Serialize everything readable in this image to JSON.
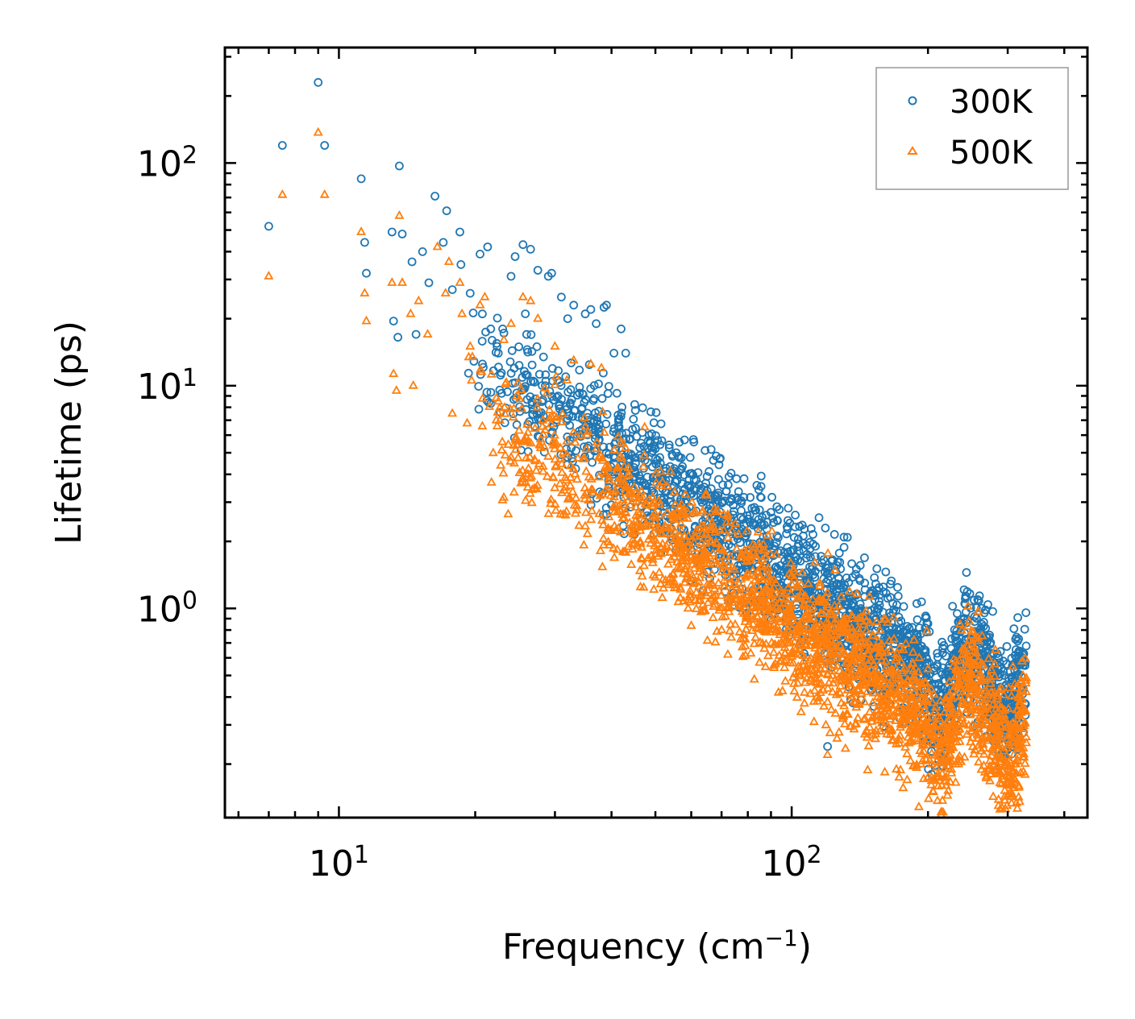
{
  "chart_data": {
    "type": "scatter",
    "xscale": "log",
    "yscale": "log",
    "xlim": [
      5.6,
      450
    ],
    "ylim": [
      0.115,
      330
    ],
    "xlabel": "Frequency (cm",
    "xlabel_sup": "−1",
    "xlabel_close": ")",
    "ylabel": "Lifetime (ps)",
    "x_ticks": [
      {
        "value": 10,
        "base": "10",
        "exp": "1"
      },
      {
        "value": 100,
        "base": "10",
        "exp": "2"
      }
    ],
    "y_ticks": [
      {
        "value": 1,
        "base": "10",
        "exp": "0"
      },
      {
        "value": 10,
        "base": "10",
        "exp": "1"
      },
      {
        "value": 100,
        "base": "10",
        "exp": "2"
      }
    ],
    "legend": {
      "position": "top-right",
      "entries": [
        "300K",
        "500K"
      ]
    },
    "series": [
      {
        "name": "300K",
        "marker": "circle",
        "color": "#1f77b4",
        "points": [
          [
            7.0,
            52
          ],
          [
            7.5,
            120
          ],
          [
            9.0,
            230
          ],
          [
            9.3,
            120
          ],
          [
            11.2,
            85
          ],
          [
            11.4,
            44
          ],
          [
            11.5,
            32
          ],
          [
            13.1,
            49
          ],
          [
            13.6,
            97
          ],
          [
            13.8,
            48
          ],
          [
            13.2,
            19.5
          ],
          [
            13.5,
            16.5
          ],
          [
            14.5,
            36
          ],
          [
            14.8,
            17
          ],
          [
            15.3,
            40
          ],
          [
            15.8,
            29
          ],
          [
            16.3,
            71
          ],
          [
            17.0,
            44
          ],
          [
            17.3,
            61
          ],
          [
            17.8,
            27
          ],
          [
            18.5,
            49
          ],
          [
            18.6,
            35
          ],
          [
            19.5,
            26
          ],
          [
            20.5,
            39
          ],
          [
            21.3,
            42
          ],
          [
            21.8,
            16
          ],
          [
            22.5,
            14
          ],
          [
            23.0,
            18
          ],
          [
            24.0,
            31
          ],
          [
            24.5,
            38
          ],
          [
            25.5,
            43
          ],
          [
            26.5,
            41
          ],
          [
            27.5,
            33
          ],
          [
            29.0,
            31
          ],
          [
            29.5,
            32
          ],
          [
            31.0,
            25
          ],
          [
            32.0,
            20
          ],
          [
            33.0,
            23
          ],
          [
            35.0,
            21
          ],
          [
            36.0,
            22
          ],
          [
            37.0,
            19
          ],
          [
            38.5,
            22.5
          ],
          [
            39.0,
            23
          ],
          [
            40.5,
            14
          ],
          [
            42.0,
            18
          ],
          [
            43.0,
            14
          ],
          [
            120.0,
            0.24
          ]
        ],
        "cloud": {
          "x_range": [
            19,
            330
          ],
          "y_at_x20": 14,
          "slope": -1.45,
          "spread": 0.42
        }
      },
      {
        "name": "500K",
        "marker": "triangle",
        "color": "#ff7f0e",
        "points": [
          [
            7.0,
            31
          ],
          [
            7.5,
            72
          ],
          [
            9.0,
            137
          ],
          [
            9.3,
            72
          ],
          [
            11.2,
            49
          ],
          [
            11.4,
            26
          ],
          [
            11.5,
            19.5
          ],
          [
            13.1,
            29
          ],
          [
            13.6,
            58
          ],
          [
            13.8,
            29
          ],
          [
            13.2,
            11.3
          ],
          [
            13.4,
            9.5
          ],
          [
            14.4,
            21
          ],
          [
            14.6,
            10
          ],
          [
            15.0,
            24
          ],
          [
            15.7,
            17
          ],
          [
            16.5,
            42
          ],
          [
            17.2,
            26
          ],
          [
            17.5,
            36
          ],
          [
            17.8,
            7.5
          ],
          [
            18.5,
            29
          ],
          [
            18.7,
            21
          ],
          [
            19.5,
            15
          ],
          [
            20.5,
            23
          ],
          [
            21.0,
            25
          ],
          [
            22.5,
            8.5
          ],
          [
            24.0,
            19
          ],
          [
            25.5,
            25
          ],
          [
            26.5,
            24
          ],
          [
            27.5,
            20
          ],
          [
            30.0,
            15
          ],
          [
            33.0,
            13
          ],
          [
            36.0,
            12.5
          ],
          [
            38.0,
            12
          ],
          [
            45.0,
            2.35
          ],
          [
            120.0,
            0.38
          ],
          [
            120.0,
            0.22
          ]
        ],
        "cloud": {
          "x_range": [
            19,
            330
          ],
          "y_at_x20": 8,
          "slope": -1.4,
          "spread": 0.45
        }
      }
    ]
  }
}
